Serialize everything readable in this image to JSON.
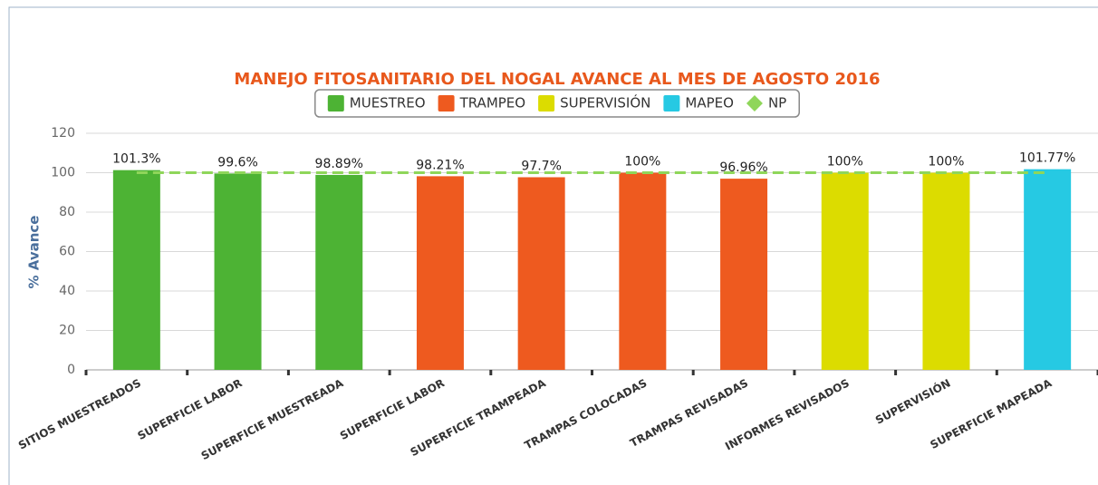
{
  "chart_data": {
    "type": "bar",
    "title": "MANEJO FITOSANITARIO DEL NOGAL AVANCE AL MES DE AGOSTO 2016",
    "y_label": "% Avance",
    "categories": [
      "SITIOS MUESTREADOS",
      "SUPERFICIE LABOR",
      "SUPERFICIE MUESTREADA",
      "SUPERFICIE LABOR",
      "SUPERFICIE TRAMPEADA",
      "TRAMPAS COLOCADAS",
      "TRAMPAS REVISADAS",
      "INFORMES REVISADOS",
      "SUPERVISIÓN",
      "SUPERFICIE MAPEADA"
    ],
    "series": [
      {
        "name": "MUESTREO",
        "color": "#4db334",
        "values": [
          101.3,
          99.6,
          98.89,
          null,
          null,
          null,
          null,
          null,
          null,
          null
        ],
        "value_labels": [
          "101.3%",
          "99.6%",
          "98.89%",
          null,
          null,
          null,
          null,
          null,
          null,
          null
        ]
      },
      {
        "name": "TRAMPEO",
        "color": "#ee5a1f",
        "values": [
          null,
          null,
          null,
          98.21,
          97.7,
          100,
          96.96,
          null,
          null,
          null
        ],
        "value_labels": [
          null,
          null,
          null,
          "98.21%",
          "97.7%",
          "100%",
          "96.96%",
          null,
          null,
          null
        ]
      },
      {
        "name": "SUPERVISIÓN",
        "color": "#dcdc00",
        "values": [
          null,
          null,
          null,
          null,
          null,
          null,
          null,
          100,
          100,
          null
        ],
        "value_labels": [
          null,
          null,
          null,
          null,
          null,
          null,
          null,
          "100%",
          "100%",
          null
        ]
      },
      {
        "name": "MAPEO",
        "color": "#26c9e3",
        "values": [
          null,
          null,
          null,
          null,
          null,
          null,
          null,
          null,
          null,
          101.77
        ],
        "value_labels": [
          null,
          null,
          null,
          null,
          null,
          null,
          null,
          null,
          null,
          "101.77%"
        ]
      },
      {
        "name": "NP",
        "type": "line",
        "dashed": true,
        "color": "#8fd65a",
        "values": [
          100,
          100,
          100,
          100,
          100,
          100,
          100,
          100,
          100,
          100
        ]
      }
    ],
    "ylim": [
      0,
      120
    ],
    "yticks": [
      0,
      20,
      40,
      60,
      80,
      100,
      120
    ],
    "grid": true,
    "legend": "top"
  }
}
